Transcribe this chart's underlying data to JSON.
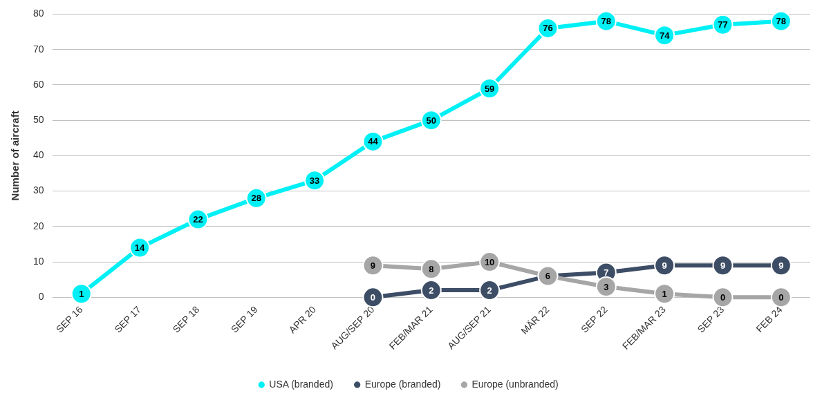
{
  "chart_data": {
    "type": "line",
    "ylabel": "Number of aircraft",
    "categories": [
      "SEP 16",
      "SEP 17",
      "SEP 18",
      "SEP 19",
      "APR 20",
      "AUG/SEP 20",
      "FEB/MAR 21",
      "AUG/SEP 21",
      "MÄR 22",
      "SEP 22",
      "FEB/MAR 23",
      "SEP 23",
      "FEB 24"
    ],
    "series": [
      {
        "name": "USA (branded)",
        "color": "#00f0f5",
        "values": [
          1,
          14,
          22,
          28,
          33,
          44,
          50,
          59,
          76,
          78,
          74,
          77,
          78
        ],
        "value_labels": [
          "1",
          "14",
          "22",
          "28",
          "33",
          "44",
          "50",
          "59",
          "76",
          "78",
          "74",
          "77",
          "78"
        ]
      },
      {
        "name": "Europe (branded)",
        "color": "#3d4d66",
        "values": [
          null,
          null,
          null,
          null,
          null,
          0,
          2,
          2,
          6,
          7,
          9,
          9,
          9
        ],
        "value_labels": [
          null,
          null,
          null,
          null,
          null,
          "0",
          "2",
          "2",
          null,
          "7",
          "9",
          "9",
          "9"
        ]
      },
      {
        "name": "Europe (unbranded)",
        "color": "#a6a6a6",
        "values": [
          null,
          null,
          null,
          null,
          null,
          9,
          8,
          10,
          6,
          3,
          1,
          0,
          0
        ],
        "value_labels": [
          null,
          null,
          null,
          null,
          null,
          "9",
          "8",
          "10",
          "6",
          "3",
          "1",
          "0",
          "0"
        ]
      }
    ],
    "ylim": [
      0,
      80
    ],
    "yticks": [
      0,
      10,
      20,
      30,
      40,
      50,
      60,
      70,
      80
    ],
    "grid": "y",
    "legend": "bottom",
    "marker": "circle",
    "line_style": "solid"
  }
}
